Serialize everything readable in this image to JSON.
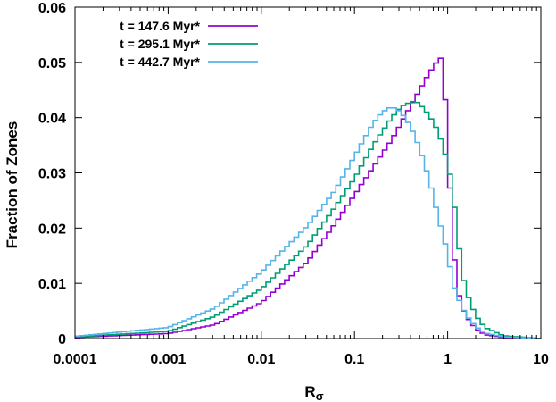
{
  "chart_data": {
    "type": "line",
    "style": "histogram-step",
    "title": "",
    "xlabel": "R",
    "xlabel_subscript": "σ",
    "ylabel": "Fraction of Zones",
    "xscale": "log",
    "xlim": [
      0.0001,
      10
    ],
    "ylim": [
      0,
      0.06
    ],
    "xticks": [
      0.0001,
      0.001,
      0.01,
      0.1,
      1,
      10
    ],
    "xtick_labels": [
      "0.0001",
      "0.001",
      "0.01",
      "0.1",
      "1",
      "10"
    ],
    "yticks": [
      0,
      0.01,
      0.02,
      0.03,
      0.04,
      0.05,
      0.06
    ],
    "ytick_labels": [
      "0",
      "0.01",
      "0.02",
      "0.03",
      "0.04",
      "0.05",
      "0.06"
    ],
    "grid": false,
    "legend_position": "top-left",
    "series": [
      {
        "name": "t = 147.6 Myr*",
        "color": "#9400d3",
        "points": [
          [
            -4,
            0.0002
          ],
          [
            -3,
            0.0009
          ],
          [
            -2.5,
            0.0025
          ],
          [
            -2,
            0.0065
          ],
          [
            -1.5,
            0.014
          ],
          [
            -1.2,
            0.021
          ],
          [
            -1,
            0.026
          ],
          [
            -0.8,
            0.031
          ],
          [
            -0.6,
            0.036
          ],
          [
            -0.5,
            0.039
          ],
          [
            -0.4,
            0.042
          ],
          [
            -0.3,
            0.045
          ],
          [
            -0.2,
            0.048
          ],
          [
            -0.1,
            0.0505
          ],
          [
            -0.05,
            0.051
          ],
          [
            0,
            0.0355
          ],
          [
            0.05,
            0.019
          ],
          [
            0.1,
            0.0095
          ],
          [
            0.15,
            0.006
          ],
          [
            0.2,
            0.004
          ],
          [
            0.3,
            0.0018
          ],
          [
            0.4,
            0.0007
          ],
          [
            0.6,
            0.0002
          ],
          [
            1,
            0
          ]
        ]
      },
      {
        "name": "t = 295.1 Myr*",
        "color": "#009e73",
        "points": [
          [
            -4,
            0.0003
          ],
          [
            -3,
            0.0013
          ],
          [
            -2.5,
            0.004
          ],
          [
            -2,
            0.009
          ],
          [
            -1.5,
            0.017
          ],
          [
            -1.2,
            0.024
          ],
          [
            -1,
            0.029
          ],
          [
            -0.8,
            0.035
          ],
          [
            -0.6,
            0.04
          ],
          [
            -0.5,
            0.042
          ],
          [
            -0.4,
            0.0428
          ],
          [
            -0.35,
            0.043
          ],
          [
            -0.3,
            0.0425
          ],
          [
            -0.2,
            0.0405
          ],
          [
            -0.1,
            0.0375
          ],
          [
            0,
            0.032
          ],
          [
            0.05,
            0.0275
          ],
          [
            0.1,
            0.02
          ],
          [
            0.15,
            0.0125
          ],
          [
            0.2,
            0.0085
          ],
          [
            0.3,
            0.0042
          ],
          [
            0.4,
            0.002
          ],
          [
            0.6,
            0.0005
          ],
          [
            1,
            0
          ]
        ]
      },
      {
        "name": "t = 442.7 Myr*",
        "color": "#56b4e9",
        "points": [
          [
            -4,
            0.0004
          ],
          [
            -3,
            0.002
          ],
          [
            -2.5,
            0.0055
          ],
          [
            -2,
            0.012
          ],
          [
            -1.5,
            0.0205
          ],
          [
            -1.2,
            0.027
          ],
          [
            -1,
            0.033
          ],
          [
            -0.8,
            0.039
          ],
          [
            -0.7,
            0.041
          ],
          [
            -0.6,
            0.042
          ],
          [
            -0.5,
            0.041
          ],
          [
            -0.4,
            0.0385
          ],
          [
            -0.3,
            0.0345
          ],
          [
            -0.2,
            0.029
          ],
          [
            -0.1,
            0.022
          ],
          [
            0,
            0.0155
          ],
          [
            0.05,
            0.0105
          ],
          [
            0.1,
            0.0078
          ],
          [
            0.15,
            0.006
          ],
          [
            0.2,
            0.0042
          ],
          [
            0.3,
            0.0022
          ],
          [
            0.4,
            0.001
          ],
          [
            0.6,
            0.0003
          ],
          [
            1,
            0
          ]
        ]
      }
    ]
  }
}
